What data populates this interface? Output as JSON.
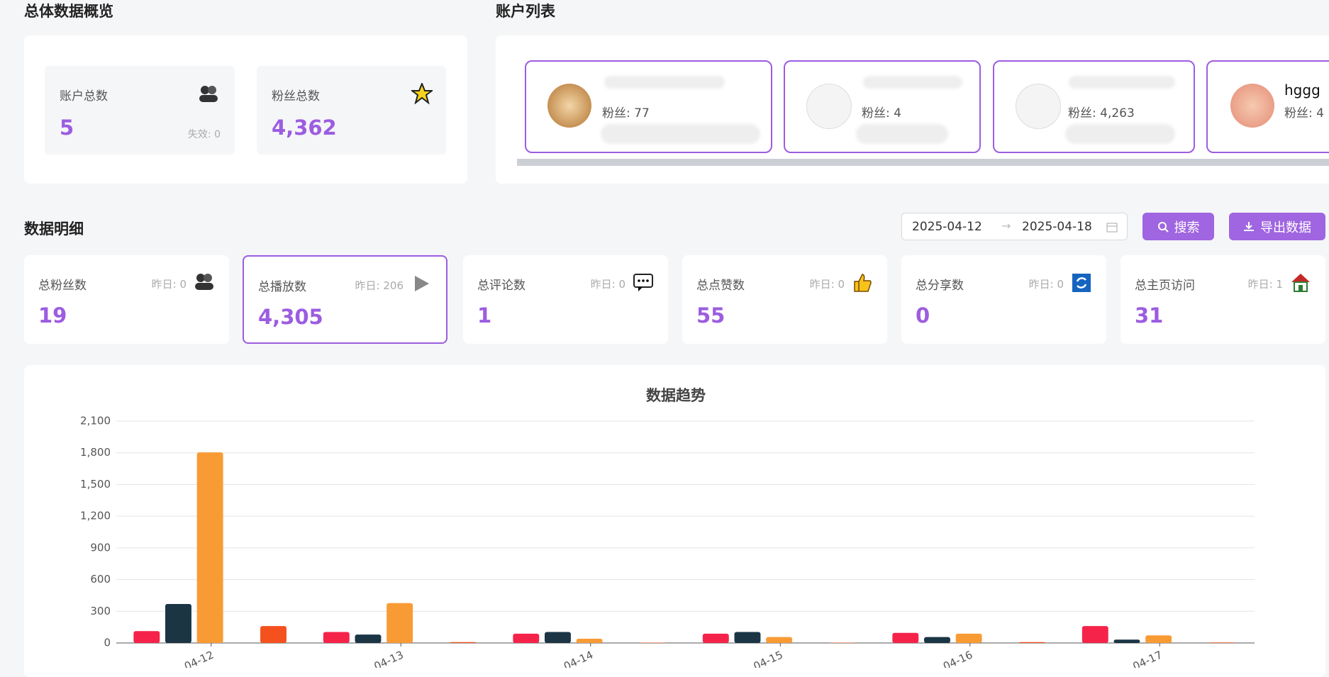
{
  "overview": {
    "title": "总体数据概览",
    "accounts_label": "账户总数",
    "accounts_value": "5",
    "invalid": "失效: 0",
    "fans_label": "粉丝总数",
    "fans_value": "4,362"
  },
  "account_list": {
    "title": "账户列表",
    "accounts": [
      {
        "fans": "粉丝: 77"
      },
      {
        "fans": "粉丝: 4"
      },
      {
        "fans": "粉丝: 4,263"
      },
      {
        "name": "hggg",
        "fans": "粉丝: 4"
      }
    ]
  },
  "details": {
    "title": "数据明细",
    "date_start": "2025-04-12",
    "date_end": "2025-04-18",
    "search": "搜索",
    "export": "导出数据",
    "cards": [
      {
        "label": "总粉丝数",
        "yesterday": "昨日: 0",
        "value": "19"
      },
      {
        "label": "总播放数",
        "yesterday": "昨日: 206",
        "value": "4,305"
      },
      {
        "label": "总评论数",
        "yesterday": "昨日: 0",
        "value": "1"
      },
      {
        "label": "总点赞数",
        "yesterday": "昨日: 0",
        "value": "55"
      },
      {
        "label": "总分享数",
        "yesterday": "昨日: 0",
        "value": "0"
      },
      {
        "label": "总主页访问",
        "yesterday": "昨日: 1",
        "value": "31"
      }
    ]
  },
  "chart_data": {
    "type": "bar",
    "title": "数据趋势",
    "categories": [
      "04-12",
      "04-13",
      "04-14",
      "04-15",
      "04-16",
      "04-17"
    ],
    "series": [
      {
        "color": "#f5234a",
        "values": [
          112,
          104,
          88,
          88,
          96,
          160
        ]
      },
      {
        "color": "#1b3545",
        "values": [
          369,
          80,
          104,
          104,
          56,
          32
        ]
      },
      {
        "color": "#f99b35",
        "values": [
          1804,
          377,
          40,
          56,
          88,
          72
        ]
      },
      {
        "color": "#8a6dd8",
        "values": [
          0,
          0,
          0,
          0,
          0,
          0
        ]
      },
      {
        "color": "#f4511e",
        "values": [
          160,
          8,
          3,
          3,
          8,
          5
        ]
      },
      {
        "color": "#2b9fd8",
        "values": [
          0,
          0,
          0,
          0,
          0,
          0
        ]
      }
    ],
    "ylim": [
      0,
      2100
    ],
    "yticks": [
      0,
      300,
      600,
      900,
      {
        "value": 1200,
        "label": "1,200"
      },
      {
        "value": 1500,
        "label": "1,500"
      },
      {
        "value": 1800,
        "label": "1,800"
      },
      {
        "value": 2100,
        "label": "2,100"
      }
    ],
    "grid": true
  }
}
